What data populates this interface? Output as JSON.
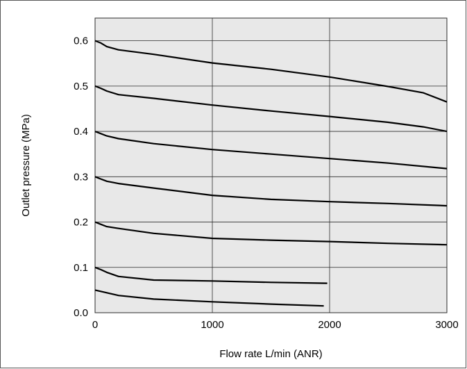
{
  "chart_data": {
    "type": "line",
    "xlabel": "Flow rate L/min (ANR)",
    "ylabel": "Outlet pressure (MPa)",
    "xlim": [
      0,
      3000
    ],
    "ylim": [
      0,
      0.65
    ],
    "xticks": [
      0,
      1000,
      2000,
      3000
    ],
    "xtick_labels": [
      "0",
      "1000",
      "2000",
      "3000"
    ],
    "yticks": [
      0.0,
      0.1,
      0.2,
      0.3,
      0.4,
      0.5,
      0.6
    ],
    "ytick_labels": [
      "0.0",
      "0.1",
      "0.2",
      "0.3",
      "0.4",
      "0.5",
      "0.6"
    ],
    "grid": true,
    "plot_background": "#e8e8e8",
    "series": [
      {
        "x": [
          0,
          50,
          100,
          200,
          500,
          1000,
          1500,
          2000,
          2500,
          2800,
          3000
        ],
        "y": [
          0.6,
          0.595,
          0.587,
          0.58,
          0.57,
          0.551,
          0.537,
          0.52,
          0.499,
          0.485,
          0.465
        ]
      },
      {
        "x": [
          0,
          50,
          100,
          200,
          500,
          1000,
          1500,
          2000,
          2500,
          2800,
          3000
        ],
        "y": [
          0.5,
          0.495,
          0.489,
          0.481,
          0.473,
          0.458,
          0.445,
          0.433,
          0.42,
          0.41,
          0.4
        ]
      },
      {
        "x": [
          0,
          50,
          100,
          200,
          500,
          1000,
          1500,
          2000,
          2500,
          3000
        ],
        "y": [
          0.4,
          0.395,
          0.39,
          0.384,
          0.373,
          0.36,
          0.35,
          0.34,
          0.33,
          0.318
        ]
      },
      {
        "x": [
          0,
          50,
          100,
          200,
          500,
          1000,
          1500,
          2000,
          2500,
          3000
        ],
        "y": [
          0.3,
          0.295,
          0.29,
          0.285,
          0.275,
          0.259,
          0.25,
          0.245,
          0.241,
          0.236
        ]
      },
      {
        "x": [
          0,
          50,
          100,
          200,
          500,
          1000,
          1500,
          2000,
          2500,
          3000
        ],
        "y": [
          0.2,
          0.195,
          0.19,
          0.186,
          0.175,
          0.164,
          0.16,
          0.157,
          0.153,
          0.15
        ]
      },
      {
        "x": [
          0,
          50,
          100,
          200,
          500,
          1000,
          1500,
          1980
        ],
        "y": [
          0.1,
          0.095,
          0.089,
          0.08,
          0.072,
          0.07,
          0.067,
          0.065
        ]
      },
      {
        "x": [
          0,
          100,
          200,
          500,
          1000,
          1500,
          1950
        ],
        "y": [
          0.05,
          0.044,
          0.038,
          0.03,
          0.024,
          0.019,
          0.015
        ]
      }
    ]
  }
}
